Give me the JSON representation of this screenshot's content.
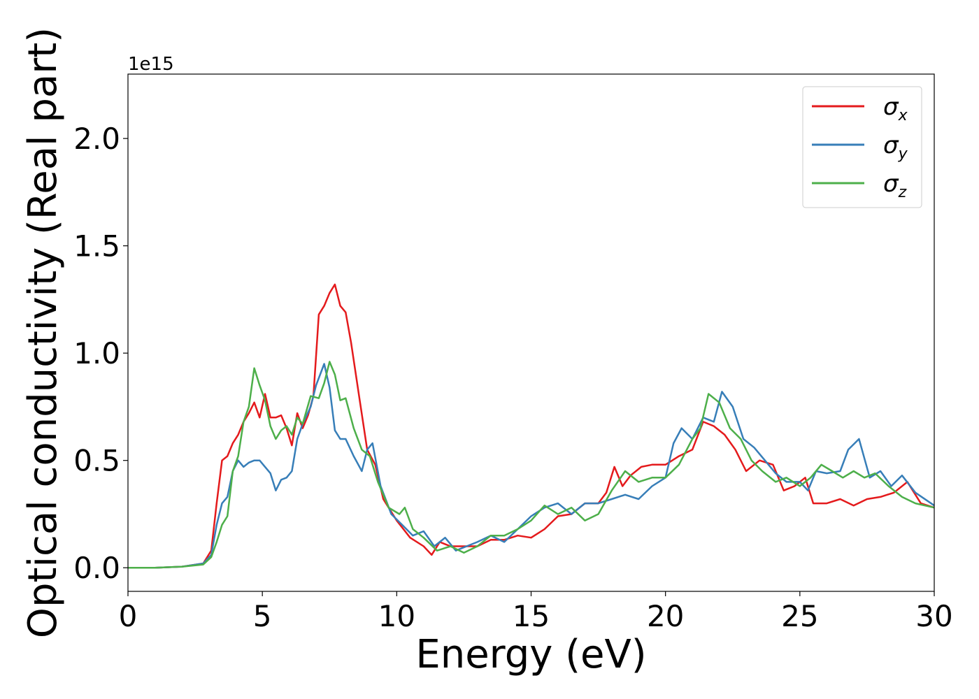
{
  "chart_data": {
    "type": "line",
    "xlabel": "Energy (eV)",
    "ylabel": "Optical conductivity (Real part)",
    "offset_text": "1e15",
    "xlim": [
      0,
      30
    ],
    "ylim": [
      -0.11,
      2.3
    ],
    "x_ticks": [
      "0",
      "5",
      "10",
      "15",
      "20",
      "25",
      "30"
    ],
    "y_ticks": [
      "0.0",
      "0.5",
      "1.0",
      "1.5",
      "2.0"
    ],
    "grid": false,
    "legend_position": "top-right",
    "series": [
      {
        "name": "σx",
        "symbol": "σ",
        "subscript": "x",
        "color": "#e41a1c",
        "points": [
          [
            0,
            0
          ],
          [
            1,
            0
          ],
          [
            2,
            0.005
          ],
          [
            2.8,
            0.02
          ],
          [
            3.1,
            0.08
          ],
          [
            3.3,
            0.3
          ],
          [
            3.5,
            0.5
          ],
          [
            3.7,
            0.52
          ],
          [
            3.9,
            0.58
          ],
          [
            4.1,
            0.62
          ],
          [
            4.3,
            0.68
          ],
          [
            4.5,
            0.72
          ],
          [
            4.7,
            0.77
          ],
          [
            4.9,
            0.7
          ],
          [
            5.1,
            0.81
          ],
          [
            5.3,
            0.7
          ],
          [
            5.5,
            0.7
          ],
          [
            5.7,
            0.71
          ],
          [
            5.9,
            0.65
          ],
          [
            6.1,
            0.57
          ],
          [
            6.3,
            0.72
          ],
          [
            6.5,
            0.65
          ],
          [
            6.7,
            0.71
          ],
          [
            6.9,
            0.8
          ],
          [
            7.1,
            1.18
          ],
          [
            7.3,
            1.22
          ],
          [
            7.5,
            1.28
          ],
          [
            7.7,
            1.32
          ],
          [
            7.9,
            1.22
          ],
          [
            8.1,
            1.19
          ],
          [
            8.3,
            1.05
          ],
          [
            8.6,
            0.8
          ],
          [
            8.9,
            0.55
          ],
          [
            9.2,
            0.48
          ],
          [
            9.5,
            0.32
          ],
          [
            10,
            0.22
          ],
          [
            10.5,
            0.14
          ],
          [
            11,
            0.1
          ],
          [
            11.3,
            0.06
          ],
          [
            11.6,
            0.12
          ],
          [
            12,
            0.1
          ],
          [
            12.5,
            0.1
          ],
          [
            13,
            0.1
          ],
          [
            13.5,
            0.13
          ],
          [
            14,
            0.13
          ],
          [
            14.5,
            0.15
          ],
          [
            15,
            0.14
          ],
          [
            15.5,
            0.18
          ],
          [
            16,
            0.24
          ],
          [
            16.5,
            0.25
          ],
          [
            17,
            0.3
          ],
          [
            17.5,
            0.3
          ],
          [
            17.8,
            0.35
          ],
          [
            18.1,
            0.47
          ],
          [
            18.4,
            0.38
          ],
          [
            18.7,
            0.43
          ],
          [
            19.1,
            0.47
          ],
          [
            19.5,
            0.48
          ],
          [
            20,
            0.48
          ],
          [
            20.5,
            0.52
          ],
          [
            21,
            0.55
          ],
          [
            21.4,
            0.68
          ],
          [
            21.8,
            0.66
          ],
          [
            22.2,
            0.62
          ],
          [
            22.6,
            0.55
          ],
          [
            23,
            0.45
          ],
          [
            23.5,
            0.5
          ],
          [
            24,
            0.48
          ],
          [
            24.4,
            0.36
          ],
          [
            24.8,
            0.38
          ],
          [
            25.2,
            0.42
          ],
          [
            25.5,
            0.3
          ],
          [
            26,
            0.3
          ],
          [
            26.5,
            0.32
          ],
          [
            27,
            0.29
          ],
          [
            27.5,
            0.32
          ],
          [
            28,
            0.33
          ],
          [
            28.5,
            0.35
          ],
          [
            29,
            0.4
          ],
          [
            29.5,
            0.3
          ],
          [
            30,
            0.28
          ]
        ]
      },
      {
        "name": "σy",
        "symbol": "σ",
        "subscript": "y",
        "color": "#377eb8",
        "points": [
          [
            0,
            0
          ],
          [
            1,
            0
          ],
          [
            2,
            0.005
          ],
          [
            2.8,
            0.02
          ],
          [
            3.1,
            0.06
          ],
          [
            3.3,
            0.2
          ],
          [
            3.5,
            0.3
          ],
          [
            3.7,
            0.33
          ],
          [
            3.9,
            0.45
          ],
          [
            4.1,
            0.5
          ],
          [
            4.3,
            0.47
          ],
          [
            4.5,
            0.49
          ],
          [
            4.7,
            0.5
          ],
          [
            4.9,
            0.5
          ],
          [
            5.1,
            0.47
          ],
          [
            5.3,
            0.44
          ],
          [
            5.5,
            0.36
          ],
          [
            5.7,
            0.41
          ],
          [
            5.9,
            0.42
          ],
          [
            6.1,
            0.45
          ],
          [
            6.3,
            0.6
          ],
          [
            6.5,
            0.67
          ],
          [
            6.8,
            0.75
          ],
          [
            7.0,
            0.85
          ],
          [
            7.3,
            0.95
          ],
          [
            7.5,
            0.84
          ],
          [
            7.7,
            0.64
          ],
          [
            7.9,
            0.6
          ],
          [
            8.1,
            0.6
          ],
          [
            8.4,
            0.52
          ],
          [
            8.7,
            0.45
          ],
          [
            8.9,
            0.55
          ],
          [
            9.1,
            0.58
          ],
          [
            9.4,
            0.38
          ],
          [
            9.8,
            0.25
          ],
          [
            10.2,
            0.2
          ],
          [
            10.6,
            0.15
          ],
          [
            11,
            0.17
          ],
          [
            11.4,
            0.1
          ],
          [
            11.8,
            0.14
          ],
          [
            12.2,
            0.08
          ],
          [
            12.6,
            0.1
          ],
          [
            13,
            0.12
          ],
          [
            13.5,
            0.15
          ],
          [
            14,
            0.12
          ],
          [
            14.5,
            0.18
          ],
          [
            15,
            0.24
          ],
          [
            15.5,
            0.28
          ],
          [
            16,
            0.3
          ],
          [
            16.5,
            0.25
          ],
          [
            17,
            0.3
          ],
          [
            17.5,
            0.3
          ],
          [
            18,
            0.32
          ],
          [
            18.5,
            0.34
          ],
          [
            19,
            0.32
          ],
          [
            19.5,
            0.38
          ],
          [
            20,
            0.42
          ],
          [
            20.3,
            0.58
          ],
          [
            20.6,
            0.65
          ],
          [
            21,
            0.6
          ],
          [
            21.4,
            0.7
          ],
          [
            21.8,
            0.68
          ],
          [
            22.1,
            0.82
          ],
          [
            22.5,
            0.75
          ],
          [
            22.9,
            0.6
          ],
          [
            23.3,
            0.56
          ],
          [
            23.7,
            0.5
          ],
          [
            24.1,
            0.44
          ],
          [
            24.5,
            0.4
          ],
          [
            25,
            0.4
          ],
          [
            25.3,
            0.36
          ],
          [
            25.6,
            0.45
          ],
          [
            26,
            0.44
          ],
          [
            26.5,
            0.45
          ],
          [
            26.8,
            0.55
          ],
          [
            27.2,
            0.6
          ],
          [
            27.6,
            0.42
          ],
          [
            28,
            0.45
          ],
          [
            28.4,
            0.38
          ],
          [
            28.8,
            0.43
          ],
          [
            29.3,
            0.35
          ],
          [
            30,
            0.29
          ]
        ]
      },
      {
        "name": "σz",
        "symbol": "σ",
        "subscript": "z",
        "color": "#4daf4a",
        "points": [
          [
            0,
            0
          ],
          [
            1,
            0
          ],
          [
            2,
            0.005
          ],
          [
            2.8,
            0.015
          ],
          [
            3.1,
            0.05
          ],
          [
            3.3,
            0.12
          ],
          [
            3.5,
            0.2
          ],
          [
            3.7,
            0.24
          ],
          [
            3.9,
            0.45
          ],
          [
            4.1,
            0.52
          ],
          [
            4.3,
            0.68
          ],
          [
            4.5,
            0.75
          ],
          [
            4.7,
            0.93
          ],
          [
            4.9,
            0.85
          ],
          [
            5.1,
            0.78
          ],
          [
            5.3,
            0.66
          ],
          [
            5.5,
            0.6
          ],
          [
            5.7,
            0.64
          ],
          [
            5.9,
            0.66
          ],
          [
            6.1,
            0.62
          ],
          [
            6.3,
            0.7
          ],
          [
            6.5,
            0.67
          ],
          [
            6.8,
            0.8
          ],
          [
            7.1,
            0.79
          ],
          [
            7.3,
            0.86
          ],
          [
            7.5,
            0.96
          ],
          [
            7.7,
            0.9
          ],
          [
            7.9,
            0.78
          ],
          [
            8.1,
            0.79
          ],
          [
            8.4,
            0.65
          ],
          [
            8.7,
            0.55
          ],
          [
            9.0,
            0.52
          ],
          [
            9.3,
            0.4
          ],
          [
            9.7,
            0.28
          ],
          [
            10.1,
            0.25
          ],
          [
            10.3,
            0.28
          ],
          [
            10.6,
            0.18
          ],
          [
            11,
            0.14
          ],
          [
            11.5,
            0.08
          ],
          [
            12,
            0.1
          ],
          [
            12.5,
            0.07
          ],
          [
            13,
            0.1
          ],
          [
            13.5,
            0.15
          ],
          [
            14,
            0.15
          ],
          [
            14.5,
            0.18
          ],
          [
            15,
            0.22
          ],
          [
            15.5,
            0.29
          ],
          [
            16,
            0.25
          ],
          [
            16.5,
            0.28
          ],
          [
            17,
            0.22
          ],
          [
            17.5,
            0.25
          ],
          [
            18,
            0.36
          ],
          [
            18.5,
            0.45
          ],
          [
            19,
            0.4
          ],
          [
            19.5,
            0.42
          ],
          [
            20,
            0.42
          ],
          [
            20.5,
            0.48
          ],
          [
            21,
            0.6
          ],
          [
            21.3,
            0.65
          ],
          [
            21.6,
            0.81
          ],
          [
            22,
            0.77
          ],
          [
            22.4,
            0.65
          ],
          [
            22.8,
            0.6
          ],
          [
            23.2,
            0.5
          ],
          [
            23.6,
            0.45
          ],
          [
            24.1,
            0.4
          ],
          [
            24.5,
            0.42
          ],
          [
            25,
            0.38
          ],
          [
            25.4,
            0.42
          ],
          [
            25.8,
            0.48
          ],
          [
            26.2,
            0.45
          ],
          [
            26.6,
            0.42
          ],
          [
            27,
            0.45
          ],
          [
            27.4,
            0.42
          ],
          [
            27.8,
            0.44
          ],
          [
            28.3,
            0.38
          ],
          [
            28.8,
            0.33
          ],
          [
            29.3,
            0.3
          ],
          [
            30,
            0.28
          ]
        ]
      }
    ]
  }
}
